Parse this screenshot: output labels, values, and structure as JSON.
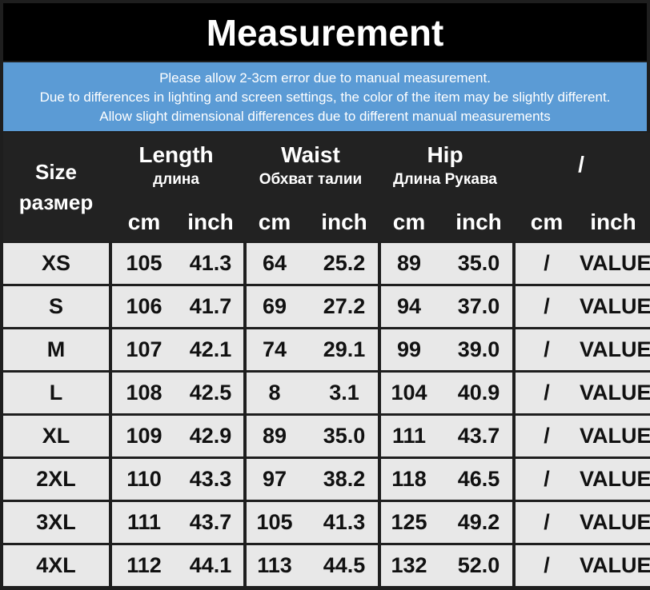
{
  "header": {
    "title": "Measurement"
  },
  "notes": [
    "Please allow 2-3cm error due to manual measurement.",
    "Due to differences in lighting and screen settings, the color of the item may be slightly different.",
    "Allow slight dimensional differences due to different manual measurements"
  ],
  "table": {
    "columns": [
      {
        "label": "Size",
        "sub": "размер"
      },
      {
        "label": "Length",
        "sub": "длина",
        "units": [
          "cm",
          "inch"
        ]
      },
      {
        "label": "Waist",
        "sub": "Обхват талии",
        "units": [
          "cm",
          "inch"
        ]
      },
      {
        "label": "Hip",
        "sub": "Длина Рукава",
        "units": [
          "cm",
          "inch"
        ]
      },
      {
        "label": "/",
        "units": [
          "cm",
          "inch"
        ]
      }
    ],
    "rows": [
      [
        "XS",
        "105",
        "41.3",
        "64",
        "25.2",
        "89",
        "35.0",
        "/",
        "VALUE"
      ],
      [
        "S",
        "106",
        "41.7",
        "69",
        "27.2",
        "94",
        "37.0",
        "/",
        "VALUE"
      ],
      [
        "M",
        "107",
        "42.1",
        "74",
        "29.1",
        "99",
        "39.0",
        "/",
        "VALUE"
      ],
      [
        "L",
        "108",
        "42.5",
        "8",
        "3.1",
        "104",
        "40.9",
        "/",
        "VALUE"
      ],
      [
        "XL",
        "109",
        "42.9",
        "89",
        "35.0",
        "111",
        "43.7",
        "/",
        "VALUE"
      ],
      [
        "2XL",
        "110",
        "43.3",
        "97",
        "38.2",
        "118",
        "46.5",
        "/",
        "VALUE"
      ],
      [
        "3XL",
        "111",
        "43.7",
        "105",
        "41.3",
        "125",
        "49.2",
        "/",
        "VALUE"
      ],
      [
        "4XL",
        "112",
        "44.1",
        "113",
        "44.5",
        "132",
        "52.0",
        "/",
        "VALUE"
      ]
    ]
  }
}
